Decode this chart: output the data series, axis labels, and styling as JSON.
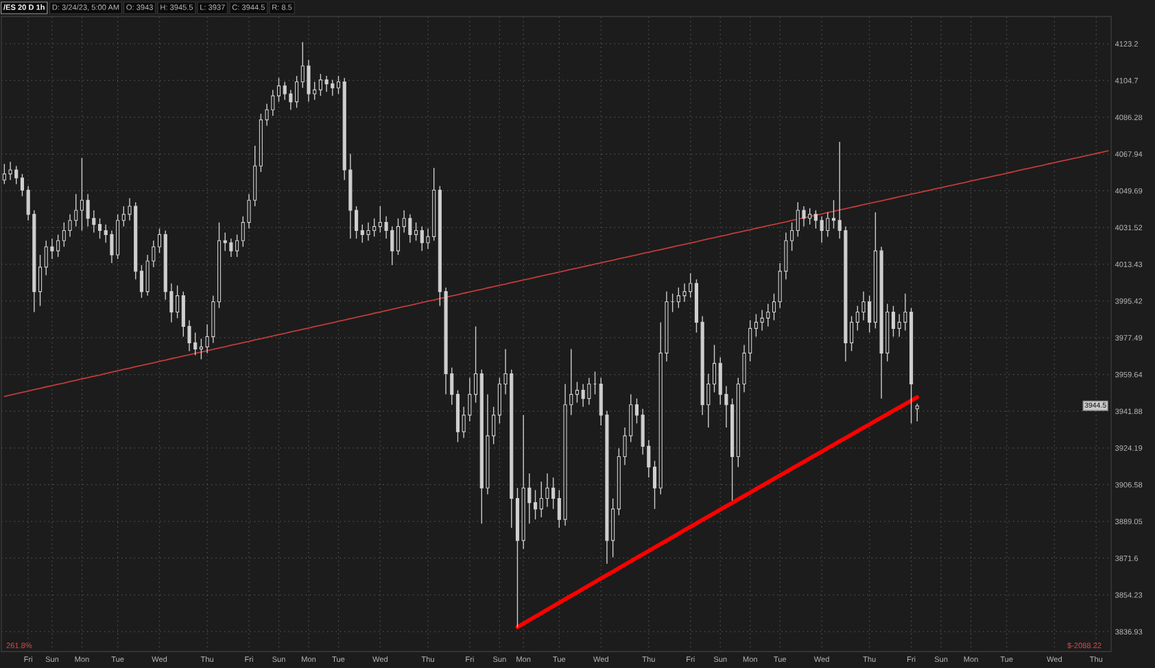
{
  "chart_data": {
    "type": "candlestick",
    "title": "/ES 20 D 1h",
    "log": true,
    "grid": true,
    "color": "#cfcfcf",
    "ylim": [
      3827.6,
      4137
    ],
    "yticks": [
      4123.2,
      4104.7,
      4086.28,
      4067.94,
      4049.69,
      4031.52,
      4013.43,
      3995.42,
      3977.49,
      3959.64,
      3941.88,
      3924.19,
      3906.58,
      3889.05,
      3871.6,
      3854.23,
      3836.93
    ],
    "categories": [
      null,
      null,
      null,
      null,
      "Fri",
      null,
      null,
      null,
      "Sun",
      null,
      null,
      null,
      null,
      "Mon",
      null,
      null,
      null,
      null,
      null,
      "Tue",
      null,
      null,
      null,
      null,
      null,
      null,
      "Wed",
      null,
      null,
      null,
      null,
      null,
      null,
      null,
      "Thu",
      null,
      null,
      null,
      null,
      null,
      null,
      "Fri",
      null,
      null,
      null,
      null,
      "Sun",
      null,
      null,
      null,
      null,
      "Mon",
      null,
      null,
      null,
      null,
      "Tue",
      null,
      null,
      null,
      null,
      null,
      null,
      "Wed",
      null,
      null,
      null,
      null,
      null,
      null,
      null,
      "Thu",
      null,
      null,
      null,
      null,
      null,
      null,
      "Fri",
      null,
      null,
      null,
      null,
      "Sun",
      null,
      null,
      null,
      "Mon",
      null,
      null,
      null,
      null,
      null,
      "Tue",
      null,
      null,
      null,
      null,
      null,
      null,
      "Wed",
      null,
      null,
      null,
      null,
      null,
      null,
      null,
      "Thu",
      null,
      null,
      null,
      null,
      null,
      null,
      "Fri",
      null,
      null,
      null,
      null,
      "Sun",
      null,
      null,
      null,
      null,
      "Mon",
      null,
      null,
      null,
      null,
      "Tue",
      null,
      null,
      null,
      null,
      null,
      null,
      "Wed",
      null,
      null,
      null,
      null,
      null,
      null,
      null,
      "Thu",
      null,
      null,
      null,
      null,
      null,
      null,
      "Fri",
      null,
      null,
      null,
      null,
      "Sun",
      null,
      null,
      null,
      null,
      "Mon",
      null,
      null,
      null,
      null,
      null,
      "Tue",
      null,
      null,
      null,
      null,
      null,
      null,
      null,
      "Wed",
      null,
      null,
      null,
      null,
      null,
      null,
      "Thu",
      null,
      null
    ],
    "ohlc": [
      [
        4055,
        4063,
        4053,
        4058
      ],
      [
        4058,
        4064,
        4055,
        4060
      ],
      [
        4060,
        4062,
        4053,
        4056
      ],
      [
        4056,
        4058,
        4047,
        4050
      ],
      [
        4050,
        4052,
        4035,
        4038
      ],
      [
        4038,
        4040,
        3990,
        4000
      ],
      [
        4000,
        4018,
        3993,
        4012
      ],
      [
        4012,
        4025,
        4008,
        4022
      ],
      [
        4022,
        4026,
        4016,
        4020
      ],
      [
        4020,
        4028,
        4017,
        4025
      ],
      [
        4025,
        4034,
        4022,
        4030
      ],
      [
        4030,
        4038,
        4027,
        4035
      ],
      [
        4035,
        4048,
        4032,
        4040
      ],
      [
        4040,
        4066,
        4030,
        4045
      ],
      [
        4045,
        4048,
        4032,
        4036
      ],
      [
        4036,
        4040,
        4029,
        4033
      ],
      [
        4033,
        4036,
        4026,
        4030
      ],
      [
        4030,
        4033,
        4024,
        4028
      ],
      [
        4028,
        4030,
        4014,
        4018
      ],
      [
        4018,
        4038,
        4016,
        4035
      ],
      [
        4035,
        4042,
        4032,
        4038
      ],
      [
        4038,
        4046,
        4035,
        4042
      ],
      [
        4042,
        4044,
        4006,
        4010
      ],
      [
        4010,
        4013,
        3997,
        4000
      ],
      [
        4000,
        4018,
        3998,
        4015
      ],
      [
        4015,
        4025,
        4012,
        4022
      ],
      [
        4022,
        4031,
        4019,
        4028
      ],
      [
        4028,
        4030,
        3996,
        4000
      ],
      [
        4000,
        4004,
        3985,
        3990
      ],
      [
        3990,
        4003,
        3987,
        3998
      ],
      [
        3998,
        4000,
        3978,
        3983
      ],
      [
        3983,
        3986,
        3971,
        3975
      ],
      [
        3975,
        3980,
        3969,
        3972
      ],
      [
        3972,
        3977,
        3967,
        3973
      ],
      [
        3973,
        3984,
        3970,
        3978
      ],
      [
        3978,
        3998,
        3975,
        3995
      ],
      [
        3995,
        4034,
        3992,
        4025
      ],
      [
        4025,
        4029,
        4020,
        4024
      ],
      [
        4024,
        4026,
        4017,
        4020
      ],
      [
        4020,
        4028,
        4017,
        4025
      ],
      [
        4025,
        4037,
        4022,
        4034
      ],
      [
        4034,
        4048,
        4031,
        4045
      ],
      [
        4045,
        4072,
        4042,
        4062
      ],
      [
        4062,
        4088,
        4059,
        4085
      ],
      [
        4085,
        4093,
        4082,
        4090
      ],
      [
        4090,
        4100,
        4087,
        4097
      ],
      [
        4097,
        4106,
        4094,
        4102
      ],
      [
        4102,
        4104,
        4095,
        4098
      ],
      [
        4098,
        4100,
        4090,
        4094
      ],
      [
        4094,
        4107,
        4091,
        4104
      ],
      [
        4104,
        4124,
        4101,
        4112
      ],
      [
        4112,
        4115,
        4094,
        4098
      ],
      [
        4098,
        4104,
        4095,
        4100
      ],
      [
        4100,
        4108,
        4097,
        4105
      ],
      [
        4105,
        4107,
        4099,
        4103
      ],
      [
        4103,
        4105,
        4097,
        4101
      ],
      [
        4101,
        4107,
        4098,
        4104
      ],
      [
        4104,
        4106,
        4055,
        4060
      ],
      [
        4060,
        4068,
        4026,
        4040
      ],
      [
        4040,
        4042,
        4026,
        4030
      ],
      [
        4030,
        4033,
        4024,
        4028
      ],
      [
        4028,
        4034,
        4025,
        4030
      ],
      [
        4030,
        4036,
        4027,
        4032
      ],
      [
        4032,
        4042,
        4029,
        4034
      ],
      [
        4034,
        4037,
        4026,
        4030
      ],
      [
        4030,
        4032,
        4013,
        4020
      ],
      [
        4020,
        4036,
        4018,
        4032
      ],
      [
        4032,
        4040,
        4029,
        4036
      ],
      [
        4036,
        4038,
        4024,
        4028
      ],
      [
        4028,
        4034,
        4025,
        4030
      ],
      [
        4030,
        4032,
        4020,
        4024
      ],
      [
        4024,
        4031,
        4021,
        4027
      ],
      [
        4027,
        4061,
        4025,
        4050
      ],
      [
        4050,
        4052,
        3993,
        4000
      ],
      [
        4000,
        4002,
        3950,
        3960
      ],
      [
        3960,
        3963,
        3945,
        3950
      ],
      [
        3950,
        3952,
        3927,
        3932
      ],
      [
        3932,
        3944,
        3929,
        3940
      ],
      [
        3940,
        3958,
        3937,
        3950
      ],
      [
        3950,
        3983,
        3946,
        3960
      ],
      [
        3960,
        3962,
        3888,
        3905
      ],
      [
        3905,
        3950,
        3902,
        3930
      ],
      [
        3930,
        3944,
        3926,
        3940
      ],
      [
        3940,
        3958,
        3936,
        3955
      ],
      [
        3955,
        3972,
        3950,
        3960
      ],
      [
        3960,
        3962,
        3886,
        3900
      ],
      [
        3900,
        3905,
        3839,
        3880
      ],
      [
        3880,
        3940,
        3876,
        3905
      ],
      [
        3905,
        3912,
        3888,
        3898
      ],
      [
        3898,
        3904,
        3890,
        3895
      ],
      [
        3895,
        3908,
        3891,
        3900
      ],
      [
        3900,
        3912,
        3896,
        3905
      ],
      [
        3905,
        3910,
        3895,
        3900
      ],
      [
        3900,
        3904,
        3886,
        3890
      ],
      [
        3890,
        3955,
        3887,
        3945
      ],
      [
        3945,
        3972,
        3940,
        3950
      ],
      [
        3950,
        3956,
        3946,
        3952
      ],
      [
        3952,
        3955,
        3944,
        3948
      ],
      [
        3948,
        3958,
        3945,
        3955
      ],
      [
        3955,
        3961,
        3950,
        3955
      ],
      [
        3955,
        3958,
        3935,
        3940
      ],
      [
        3940,
        3942,
        3869,
        3880
      ],
      [
        3880,
        3900,
        3872,
        3895
      ],
      [
        3895,
        3924,
        3892,
        3920
      ],
      [
        3920,
        3934,
        3916,
        3930
      ],
      [
        3930,
        3950,
        3927,
        3945
      ],
      [
        3945,
        3948,
        3936,
        3940
      ],
      [
        3940,
        3943,
        3921,
        3925
      ],
      [
        3925,
        3928,
        3910,
        3915
      ],
      [
        3915,
        3918,
        3895,
        3905
      ],
      [
        3905,
        3985,
        3902,
        3970
      ],
      [
        3970,
        4000,
        3966,
        3995
      ],
      [
        3995,
        3999,
        3990,
        3995
      ],
      [
        3995,
        4002,
        3992,
        3998
      ],
      [
        3998,
        4004,
        3995,
        4000
      ],
      [
        4000,
        4009,
        3997,
        4004
      ],
      [
        4004,
        4006,
        3980,
        3985
      ],
      [
        3985,
        3988,
        3940,
        3945
      ],
      [
        3945,
        3960,
        3934,
        3955
      ],
      [
        3955,
        3974,
        3951,
        3965
      ],
      [
        3965,
        3968,
        3945,
        3950
      ],
      [
        3950,
        3954,
        3934,
        3945
      ],
      [
        3945,
        3948,
        3899,
        3920
      ],
      [
        3920,
        3958,
        3915,
        3955
      ],
      [
        3955,
        3974,
        3951,
        3970
      ],
      [
        3970,
        3986,
        3966,
        3982
      ],
      [
        3982,
        3989,
        3978,
        3985
      ],
      [
        3985,
        3991,
        3981,
        3987
      ],
      [
        3987,
        3994,
        3983,
        3990
      ],
      [
        3990,
        3999,
        3986,
        3995
      ],
      [
        3995,
        4014,
        3992,
        4010
      ],
      [
        4010,
        4029,
        4006,
        4025
      ],
      [
        4025,
        4034,
        4020,
        4030
      ],
      [
        4030,
        4044,
        4027,
        4040
      ],
      [
        4040,
        4042,
        4032,
        4036
      ],
      [
        4036,
        4041,
        4033,
        4038
      ],
      [
        4038,
        4040,
        4031,
        4035
      ],
      [
        4035,
        4037,
        4024,
        4030
      ],
      [
        4030,
        4039,
        4027,
        4036
      ],
      [
        4036,
        4045,
        4031,
        4035
      ],
      [
        4035,
        4074,
        4026,
        4030
      ],
      [
        4030,
        4032,
        3966,
        3975
      ],
      [
        3975,
        3988,
        3971,
        3985
      ],
      [
        3985,
        3993,
        3981,
        3990
      ],
      [
        3990,
        4000,
        3986,
        3995
      ],
      [
        3995,
        3998,
        3980,
        3985
      ],
      [
        3985,
        4039,
        3982,
        4020
      ],
      [
        4020,
        4022,
        3948,
        3970
      ],
      [
        3970,
        3994,
        3966,
        3990
      ],
      [
        3990,
        3993,
        3978,
        3982
      ],
      [
        3982,
        3989,
        3978,
        3985
      ],
      [
        3985,
        3999,
        3981,
        3990
      ],
      [
        3990,
        3992,
        3936,
        3955
      ],
      [
        3943,
        3945.5,
        3937,
        3944.5
      ],
      null,
      null,
      null,
      null,
      null,
      null,
      null,
      null,
      null,
      null,
      null,
      null,
      null,
      null,
      null,
      null,
      null,
      null,
      null,
      null,
      null,
      null,
      null,
      null,
      null,
      null,
      null,
      null,
      null,
      null,
      null,
      null
    ],
    "series": [
      {
        "type": "line",
        "color": "#c23b3b",
        "values": [
          3949.0,
          3949.7,
          3950.3,
          3951.0,
          3951.6,
          3952.3,
          3952.9,
          3953.6,
          3954.2,
          3954.9,
          3955.5,
          3956.2,
          3956.8,
          3957.5,
          3958.1,
          3958.8,
          3959.4,
          3960.1,
          3960.8,
          3961.4,
          3962.1,
          3962.7,
          3963.4,
          3964.0,
          3964.7,
          3965.3,
          3966.0,
          3966.6,
          3967.3,
          3967.9,
          3968.6,
          3969.2,
          3969.9,
          3970.5,
          3971.2,
          3971.8,
          3972.5,
          3973.1,
          3973.8,
          3974.4,
          3975.1,
          3975.7,
          3976.4,
          3977.0,
          3977.7,
          3978.3,
          3979.0,
          3979.6,
          3980.3,
          3980.9,
          3981.6,
          3982.2,
          3982.9,
          3983.5,
          3984.2,
          3984.8,
          3985.5,
          3986.1,
          3986.8,
          3987.4,
          3988.1,
          3988.7,
          3989.4,
          3990.0,
          3990.7,
          3991.4,
          3992.0,
          3992.7,
          3993.3,
          3994.0,
          3994.6,
          3995.3,
          3995.9,
          3996.6,
          3997.2,
          3997.9,
          3998.5,
          3999.2,
          3999.8,
          4000.5,
          4001.1,
          4001.8,
          4002.4,
          4003.1,
          4003.7,
          4004.4,
          4005.0,
          4005.7,
          4006.3,
          4007.0,
          4007.6,
          4008.3,
          4008.9,
          4009.6,
          4010.2,
          4010.9,
          4011.5,
          4012.2,
          4012.8,
          4013.5,
          4014.1,
          4014.8,
          4015.4,
          4016.1,
          4016.7,
          4017.4,
          4018.0,
          4018.7,
          4019.3,
          4020.0,
          4020.6,
          4021.3,
          4021.9,
          4022.6,
          4023.2,
          4023.9,
          4024.5,
          4025.2,
          4025.9,
          4026.5,
          4027.2,
          4027.8,
          4028.5,
          4029.1,
          4029.8,
          4030.4,
          4031.1,
          4031.7,
          4032.4,
          4033.0,
          4033.7,
          4034.3,
          4035.0,
          4035.6,
          4036.3,
          4036.9,
          4037.6,
          4038.2,
          4038.9,
          4039.5,
          4040.2,
          4040.8,
          4041.5,
          4042.1,
          4042.8,
          4043.4,
          4044.1,
          4044.7,
          4045.4,
          4046.0,
          4046.7,
          4047.3,
          4048.0,
          4048.6,
          4049.3,
          4049.9,
          4050.6,
          4051.2,
          4051.9,
          4052.5,
          4053.2,
          4053.8,
          4054.5,
          4055.1,
          4055.8,
          4056.4,
          4057.1,
          4057.7,
          4058.4,
          4059.0,
          4059.7,
          4060.4,
          4061.0,
          4061.7,
          4062.3,
          4063.0,
          4063.6,
          4064.3,
          4064.9,
          4065.6,
          4066.2,
          4066.9,
          4067.5,
          4068.2,
          4068.8,
          4069.5
        ]
      },
      {
        "type": "line",
        "color": "#ff0000",
        "values": [
          null,
          null,
          null,
          null,
          null,
          null,
          null,
          null,
          null,
          null,
          null,
          null,
          null,
          null,
          null,
          null,
          null,
          null,
          null,
          null,
          null,
          null,
          null,
          null,
          null,
          null,
          null,
          null,
          null,
          null,
          null,
          null,
          null,
          null,
          null,
          null,
          null,
          null,
          null,
          null,
          null,
          null,
          null,
          null,
          null,
          null,
          null,
          null,
          null,
          null,
          null,
          null,
          null,
          null,
          null,
          null,
          null,
          null,
          null,
          null,
          null,
          null,
          null,
          null,
          null,
          null,
          null,
          null,
          null,
          null,
          null,
          null,
          null,
          null,
          null,
          null,
          null,
          null,
          null,
          null,
          null,
          null,
          null,
          null,
          null,
          null,
          3839.1,
          3840.7,
          3842.4,
          3844.0,
          3845.6,
          3847.3,
          3848.9,
          3850.5,
          3852.2,
          3853.8,
          3855.4,
          3857.1,
          3858.7,
          3860.3,
          3862.0,
          3863.6,
          3865.2,
          3866.9,
          3868.5,
          3870.1,
          3871.8,
          3873.4,
          3875.0,
          3876.7,
          3878.3,
          3879.9,
          3881.6,
          3883.2,
          3884.9,
          3886.5,
          3888.1,
          3889.8,
          3891.4,
          3893.0,
          3894.7,
          3896.3,
          3897.9,
          3899.6,
          3901.2,
          3902.8,
          3904.5,
          3906.1,
          3907.7,
          3909.4,
          3911.0,
          3912.6,
          3914.3,
          3915.9,
          3917.5,
          3919.2,
          3920.8,
          3922.4,
          3924.1,
          3925.7,
          3927.4,
          3929.0,
          3930.6,
          3932.3,
          3933.9,
          3935.5,
          3937.2,
          3938.8,
          3940.4,
          3942.1,
          3943.7,
          3945.3,
          3947.0,
          3948.6,
          null,
          null,
          null,
          null,
          null,
          null,
          null,
          null,
          null,
          null,
          null,
          null,
          null,
          null,
          null,
          null,
          null,
          null,
          null,
          null,
          null,
          null,
          null,
          null,
          null,
          null,
          null,
          null,
          null,
          null,
          null,
          null
        ]
      }
    ],
    "annotations": [
      "D: 3/24/23, 5:00 AM",
      "O: 3943",
      "H: 3945.5",
      "L: 3937",
      "C: 3944.5",
      "R: 8.5",
      "3944.5",
      "261.8%",
      "$-2088.22"
    ]
  }
}
